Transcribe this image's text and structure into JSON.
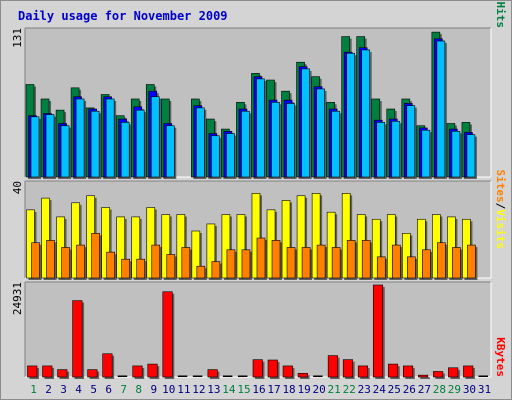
{
  "title": "Daily usage for November 2009",
  "colors": {
    "frame_bg": "#d4d4d4",
    "plot_bg": "#c0c0c0",
    "hits": "#008040",
    "files": "#0000ff",
    "pages": "#00c0ff",
    "visits": "#ffff00",
    "sites": "#ff8000",
    "kbytes": "#ff0000",
    "title": "#0000cc",
    "weekend_day": "#008040",
    "weekday": "#000080"
  },
  "chart_data": [
    {
      "type": "bar",
      "ymax_label": "131",
      "ylim": [
        0,
        131
      ],
      "categories": [
        "1",
        "2",
        "3",
        "4",
        "5",
        "6",
        "7",
        "8",
        "9",
        "10",
        "11",
        "12",
        "13",
        "14",
        "15",
        "16",
        "17",
        "18",
        "19",
        "20",
        "21",
        "22",
        "23",
        "24",
        "25",
        "26",
        "27",
        "28",
        "29",
        "30",
        "31"
      ],
      "legend": [
        "Pages",
        "Files",
        "Hits"
      ],
      "series": [
        {
          "name": "Hits",
          "values": [
            83,
            70,
            60,
            80,
            62,
            74,
            55,
            70,
            83,
            70,
            0,
            70,
            52,
            43,
            67,
            93,
            87,
            77,
            103,
            90,
            67,
            126,
            126,
            70,
            61,
            70,
            46,
            130,
            48,
            49,
            0
          ]
        },
        {
          "name": "Files",
          "values": [
            55,
            57,
            48,
            72,
            61,
            72,
            52,
            63,
            77,
            48,
            0,
            64,
            39,
            41,
            61,
            90,
            69,
            69,
            99,
            81,
            61,
            112,
            116,
            51,
            52,
            66,
            44,
            124,
            43,
            40,
            0
          ]
        },
        {
          "name": "Pages",
          "values": [
            54,
            56,
            46,
            70,
            59,
            70,
            49,
            60,
            72,
            46,
            0,
            62,
            37,
            39,
            59,
            88,
            67,
            66,
            97,
            79,
            59,
            111,
            114,
            49,
            50,
            64,
            42,
            122,
            41,
            38,
            0
          ]
        }
      ]
    },
    {
      "type": "bar",
      "ymax_label": "40",
      "ylim": [
        0,
        40
      ],
      "legend": [
        "Sites",
        "Visits"
      ],
      "series": [
        {
          "name": "Visits",
          "values": [
            29,
            34,
            26,
            32,
            35,
            30,
            26,
            26,
            30,
            27,
            27,
            20,
            23,
            27,
            27,
            36,
            29,
            33,
            35,
            36,
            28,
            36,
            27,
            25,
            27,
            19,
            25,
            27,
            26,
            25,
            0
          ]
        },
        {
          "name": "Sites",
          "values": [
            15,
            16,
            13,
            14,
            19,
            11,
            8,
            8,
            14,
            10,
            13,
            5,
            7,
            12,
            12,
            17,
            16,
            13,
            13,
            14,
            13,
            16,
            16,
            9,
            14,
            9,
            12,
            15,
            13,
            14,
            0
          ]
        }
      ]
    },
    {
      "type": "bar",
      "ymax_label": "24931",
      "ylim": [
        0,
        24931
      ],
      "legend": [
        "KBytes"
      ],
      "series": [
        {
          "name": "KBytes",
          "values": [
            3000,
            3000,
            2000,
            20700,
            2000,
            6300,
            0,
            3000,
            3500,
            23100,
            0,
            0,
            2000,
            0,
            0,
            4700,
            4600,
            3000,
            1000,
            0,
            5800,
            4700,
            3000,
            24931,
            3500,
            3000,
            500,
            1500,
            2500,
            3000,
            0
          ]
        }
      ]
    }
  ],
  "day_labels": [
    "1",
    "2",
    "3",
    "4",
    "5",
    "6",
    "7",
    "8",
    "9",
    "10",
    "11",
    "12",
    "13",
    "14",
    "15",
    "16",
    "17",
    "18",
    "19",
    "20",
    "21",
    "22",
    "23",
    "24",
    "25",
    "26",
    "27",
    "28",
    "29",
    "30",
    "31"
  ],
  "weekend_days": [
    1,
    7,
    8,
    14,
    15,
    21,
    22,
    28,
    29
  ]
}
